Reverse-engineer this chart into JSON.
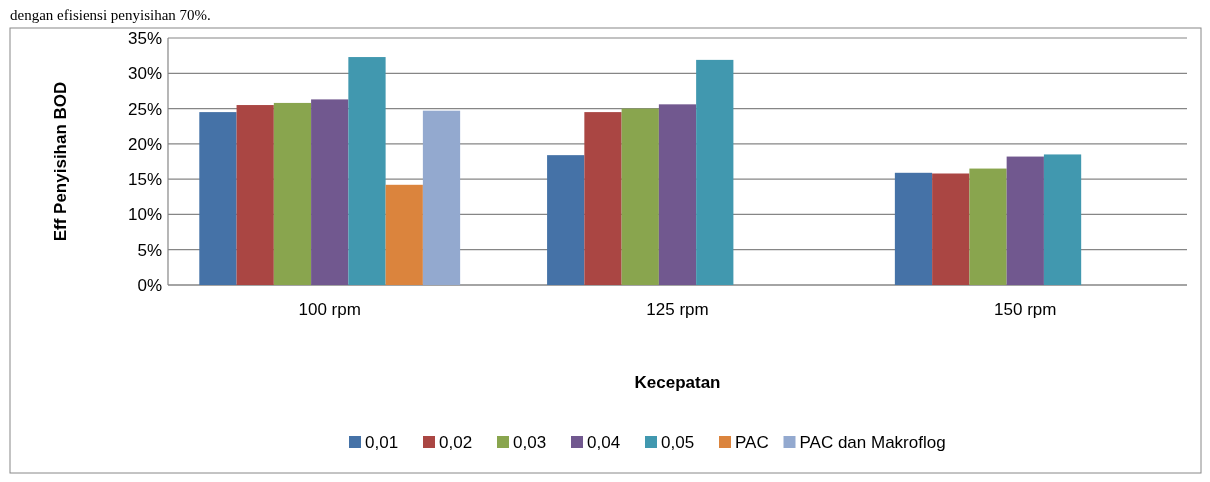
{
  "chart_data": {
    "type": "bar",
    "ylabel": "Eff Penyisihan BOD",
    "xlabel": "Kecepatan",
    "annotations": [
      "dengan efisiensi penyisihan 70%."
    ],
    "categories": [
      "100 rpm",
      "125 rpm",
      "150 rpm"
    ],
    "series": [
      {
        "name": "0,01",
        "color": "#4572a7",
        "values": [
          24.5,
          18.4,
          15.9
        ]
      },
      {
        "name": "0,02",
        "color": "#aa4643",
        "values": [
          25.5,
          24.5,
          15.8
        ]
      },
      {
        "name": "0,03",
        "color": "#89a54e",
        "values": [
          25.8,
          25.0,
          16.5
        ]
      },
      {
        "name": "0,04",
        "color": "#71588f",
        "values": [
          26.3,
          25.6,
          18.2
        ]
      },
      {
        "name": "0,05",
        "color": "#4198af",
        "values": [
          32.3,
          31.9,
          18.5
        ]
      },
      {
        "name": "PAC",
        "color": "#db843d",
        "values": [
          14.2,
          null,
          null
        ]
      },
      {
        "name": "PAC dan Makroflog",
        "color": "#93a9cf",
        "values": [
          24.7,
          null,
          null
        ]
      }
    ],
    "ylim": [
      0,
      35
    ],
    "yticks": [
      {
        "value": 0,
        "label": "0%"
      },
      {
        "value": 5,
        "label": "5%"
      },
      {
        "value": 10,
        "label": "10%"
      },
      {
        "value": 15,
        "label": "15%"
      },
      {
        "value": 20,
        "label": "20%"
      },
      {
        "value": 25,
        "label": "25%"
      },
      {
        "value": 30,
        "label": "30%"
      },
      {
        "value": 35,
        "label": "35%"
      }
    ],
    "grid": "y",
    "legend": "bottom"
  }
}
